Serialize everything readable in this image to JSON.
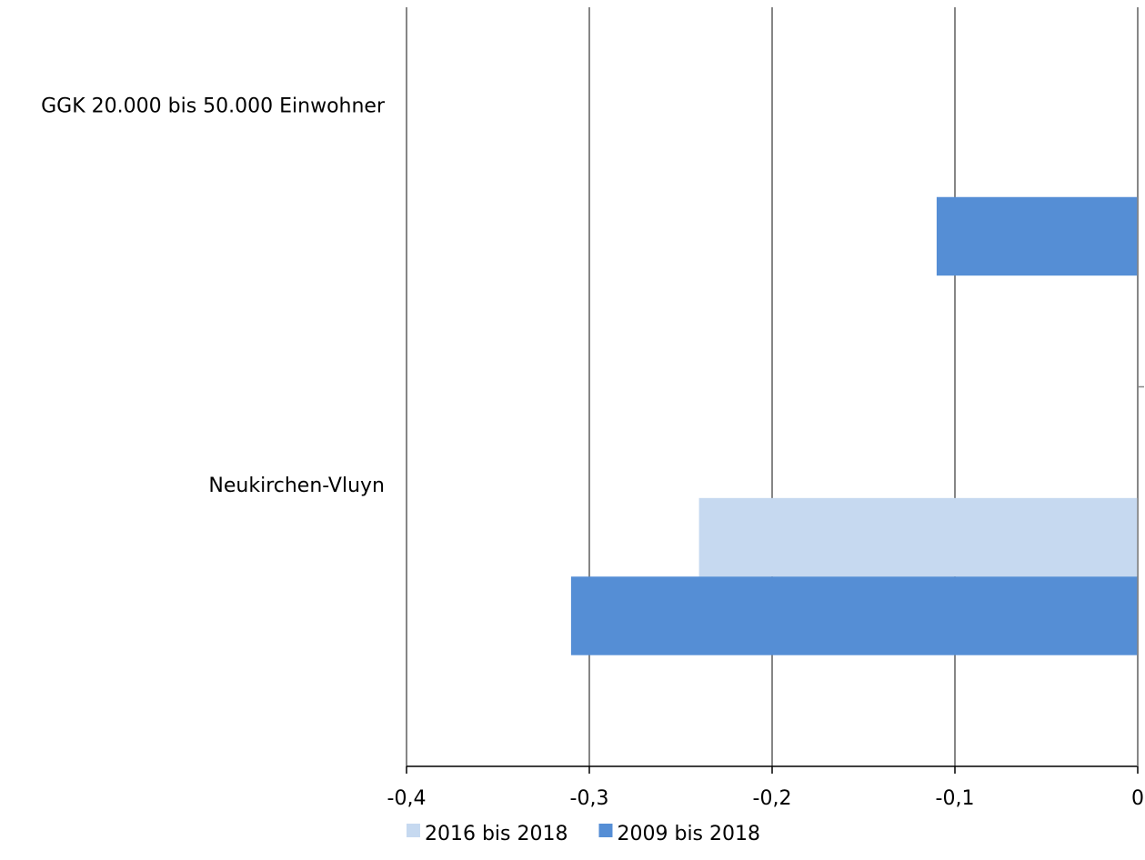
{
  "chart_data": {
    "type": "bar",
    "orientation": "horizontal",
    "categories": [
      "GGK 20.000 bis 50.000 Einwohner",
      "Neukirchen-Vluyn"
    ],
    "series": [
      {
        "name": "2016 bis 2018",
        "color": "#c6d9f0",
        "values": [
          0,
          -0.24
        ]
      },
      {
        "name": "2009 bis 2018",
        "color": "#558ed5",
        "values": [
          -0.11,
          -0.31
        ]
      }
    ],
    "xlim": [
      -0.4,
      0
    ],
    "xticks": [
      -0.4,
      -0.3,
      -0.2,
      -0.1,
      0
    ],
    "xtick_labels": [
      "-0,4",
      "-0,3",
      "-0,2",
      "-0,1",
      "0"
    ],
    "grid": true,
    "legend_position": "bottom",
    "title": "",
    "xlabel": "",
    "ylabel": ""
  }
}
